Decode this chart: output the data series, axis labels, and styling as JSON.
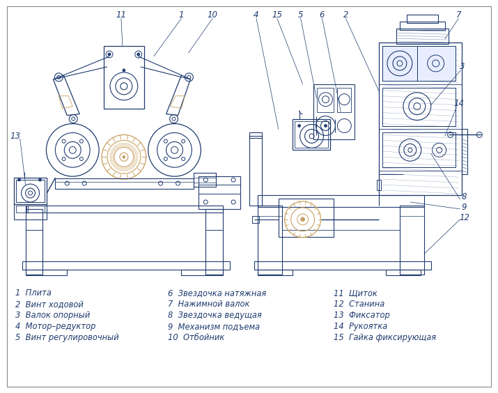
{
  "bg_color": "#ffffff",
  "line_color": "#1e3a6e",
  "line_color2": "#2a4a8a",
  "accent_color": "#c8a060",
  "legend_col1": [
    "1  Плита",
    "2  Винт ходовой",
    "3  Валок опорный",
    "4  Мотор–редуктор",
    "5  Винт регулировочный"
  ],
  "legend_col2": [
    "6  Звездочка натяжная",
    "7  Нажимной валок",
    "8  Звездочка ведущая",
    "9  Механизм подъема",
    "10  Отбойник"
  ],
  "legend_col3": [
    "11  Щиток",
    "12  Станина",
    "13  Фиксатор",
    "14  Рукоятка",
    "15  Гайка фиксирующая"
  ]
}
